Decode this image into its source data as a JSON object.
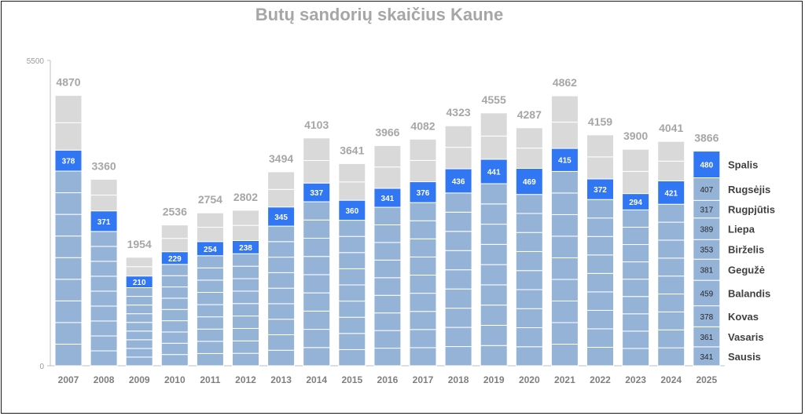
{
  "chart_data": {
    "type": "bar",
    "title": "Butų sandorių skaičius Kaune",
    "xlabel": "",
    "ylabel": "",
    "ylim": [
      0,
      5500
    ],
    "y_ticks": [
      "0",
      "5500"
    ],
    "grid": false,
    "legend": "right of last bar (month names)",
    "categories": [
      "2007",
      "2008",
      "2009",
      "2010",
      "2011",
      "2012",
      "2013",
      "2014",
      "2015",
      "2016",
      "2017",
      "2018",
      "2019",
      "2020",
      "2021",
      "2022",
      "2023",
      "2024",
      "2025"
    ],
    "totals": [
      4870,
      3360,
      1954,
      2536,
      2754,
      2802,
      3494,
      4103,
      3641,
      3966,
      4082,
      4323,
      4555,
      4287,
      4862,
      4159,
      3900,
      4041,
      3866
    ],
    "highlight_month_values": [
      378,
      371,
      210,
      229,
      254,
      238,
      345,
      337,
      360,
      341,
      376,
      436,
      441,
      469,
      415,
      372,
      294,
      421,
      480
    ],
    "months_2025": [
      {
        "name": "Sausis",
        "value": 341
      },
      {
        "name": "Vasaris",
        "value": 361
      },
      {
        "name": "Kovas",
        "value": 378
      },
      {
        "name": "Balandis",
        "value": 459
      },
      {
        "name": "Gegužė",
        "value": 381
      },
      {
        "name": "Birželis",
        "value": 353
      },
      {
        "name": "Liepa",
        "value": 389
      },
      {
        "name": "Rugpjūtis",
        "value": 317
      },
      {
        "name": "Rugsėjis",
        "value": 407
      },
      {
        "name": "Spalis",
        "value": 480
      }
    ],
    "highlight_month": "Spalis",
    "months_before_highlight": 9,
    "colors": {
      "earlier_months": "#95b3d7",
      "highlight_month": "#3176f3",
      "later_months": "#d9d9d9",
      "separator": "#ffffff",
      "axis": "#bfbfbf",
      "title": "#a6a6a6"
    }
  }
}
